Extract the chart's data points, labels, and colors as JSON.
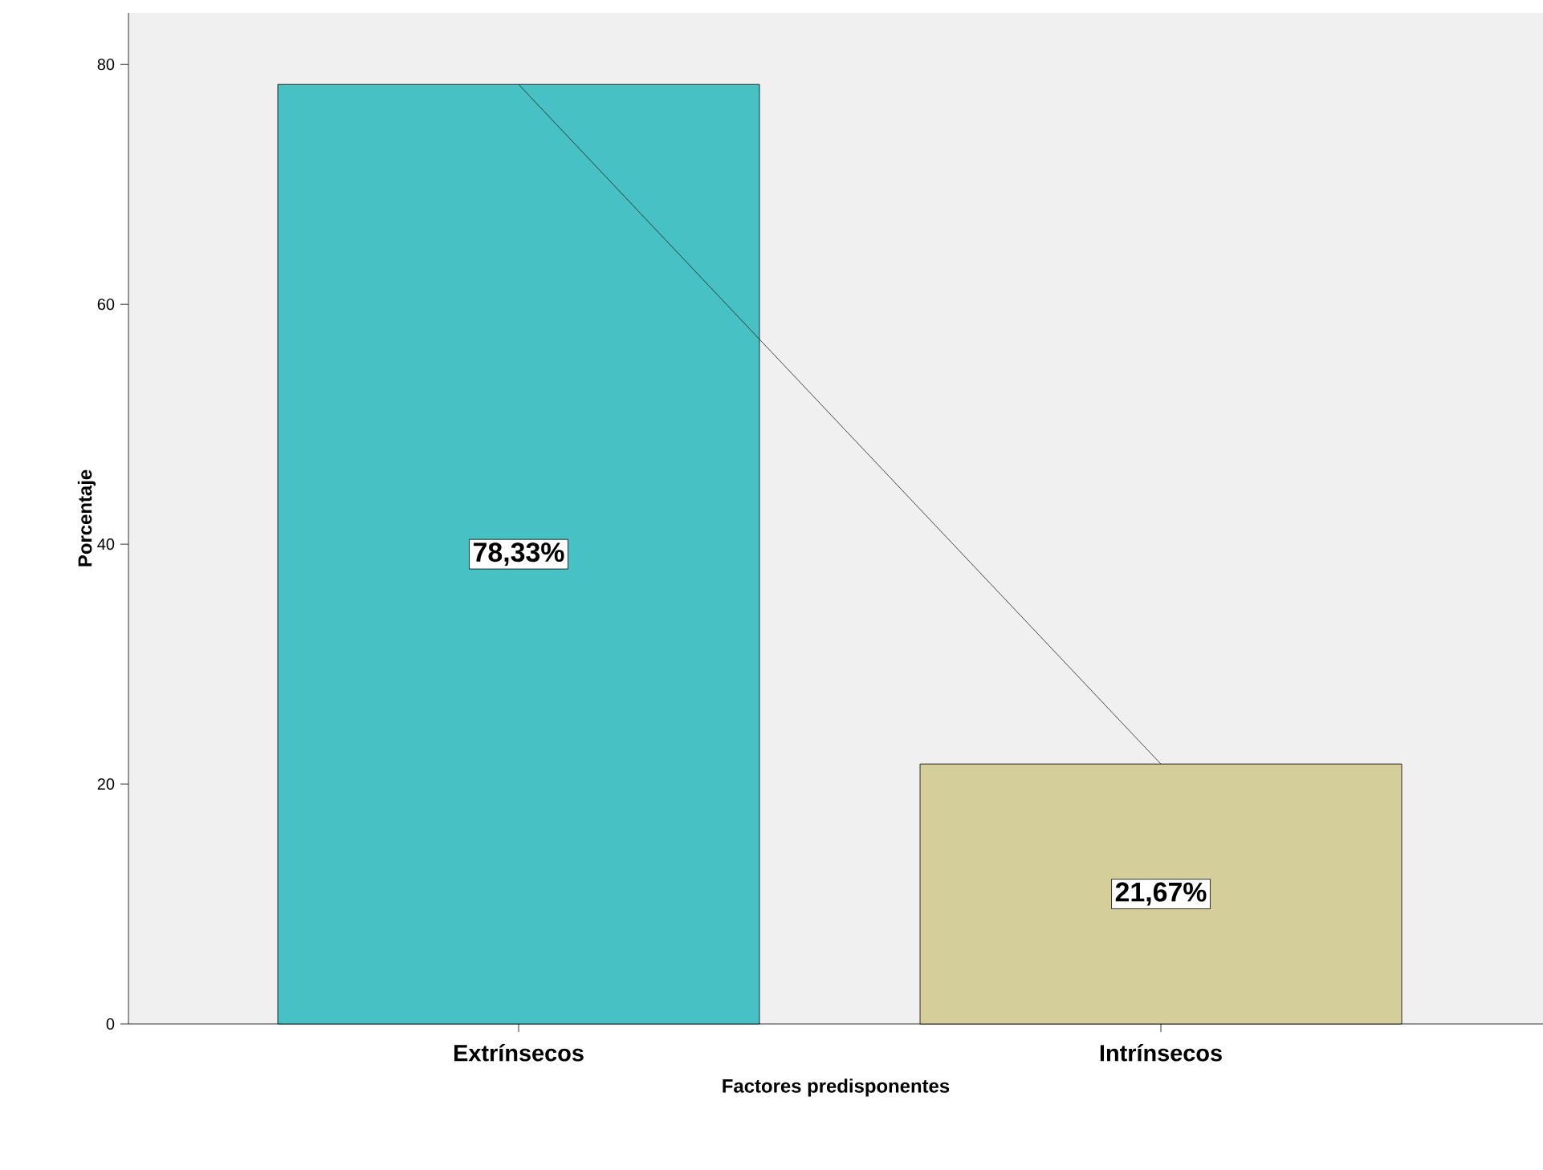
{
  "chart_data": {
    "type": "bar",
    "xlabel": "Factores predisponentes",
    "ylabel": "Porcentaje",
    "categories": [
      "Extrínsecos",
      "Intrínsecos"
    ],
    "series": [
      {
        "values": [
          78.33,
          21.67
        ],
        "colors": [
          "#48c1c5",
          "#d3ce9a"
        ],
        "value_labels": [
          "78,33%",
          "21,67%"
        ]
      },
      {
        "type": "line",
        "values": [
          78.33,
          21.67
        ],
        "color": "#1a1a1a",
        "marker": "none"
      }
    ],
    "ylim": [
      0,
      84.3
    ],
    "yticks": [
      0,
      20,
      40,
      60,
      80
    ],
    "grid": false
  }
}
